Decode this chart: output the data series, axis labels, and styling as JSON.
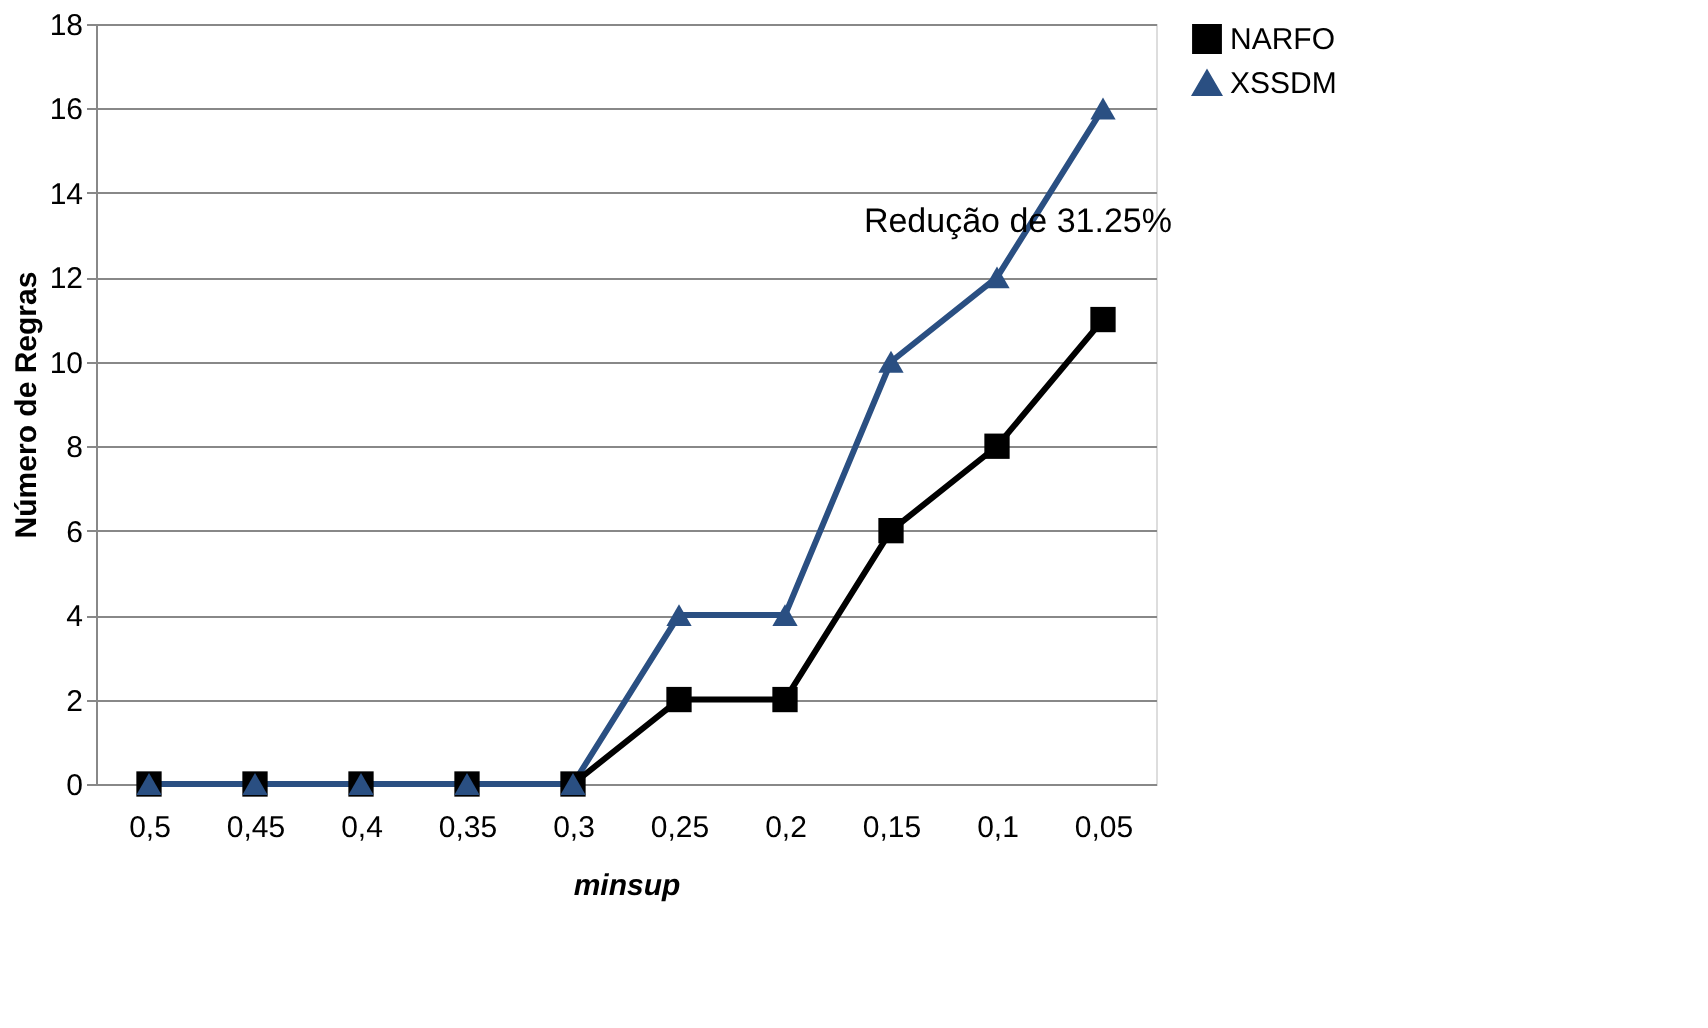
{
  "chart_data": {
    "type": "line",
    "xlabel": "minsup",
    "ylabel": "Número de Regras",
    "categories": [
      "0,5",
      "0,45",
      "0,4",
      "0,35",
      "0,3",
      "0,25",
      "0,2",
      "0,15",
      "0,1",
      "0,05"
    ],
    "series": [
      {
        "name": "NARFO",
        "color": "#000000",
        "marker": "square",
        "values": [
          0,
          0,
          0,
          0,
          0,
          2,
          2,
          6,
          8,
          11
        ]
      },
      {
        "name": "XSSDM",
        "color": "#2a4f82",
        "marker": "triangle",
        "values": [
          0,
          0,
          0,
          0,
          0,
          4,
          4,
          10,
          12,
          16
        ]
      }
    ],
    "ylim": [
      0,
      18
    ],
    "yticks": [
      0,
      2,
      4,
      6,
      8,
      10,
      12,
      14,
      16,
      18
    ],
    "grid": "y",
    "legend": "right",
    "line_style": "solid",
    "annotations": [
      "Redução de 31.25%"
    ]
  }
}
